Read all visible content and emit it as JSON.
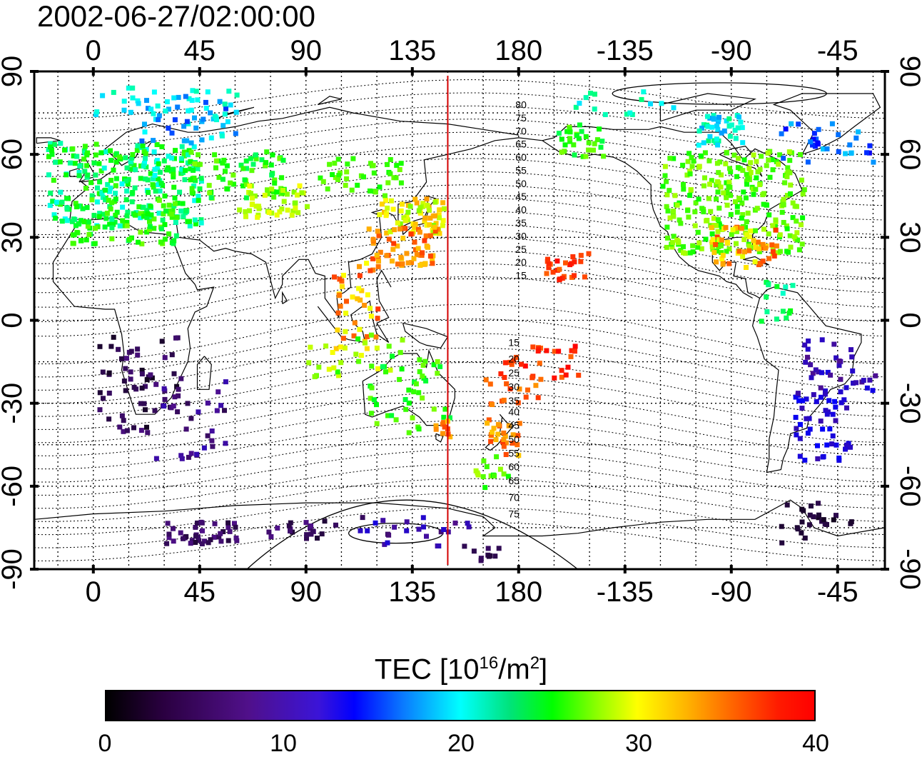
{
  "timestamp": "2002-06-27/02:00:00",
  "colorbar": {
    "title_main": "TEC  [10",
    "title_exp1": "16",
    "title_mid": "/m",
    "title_exp2": "2",
    "title_end": "]",
    "ticks": [
      "0",
      "10",
      "20",
      "30",
      "40"
    ],
    "range": [
      0,
      40
    ],
    "colormap": [
      "#000000",
      "#50108a",
      "#0000ff",
      "#00ffff",
      "#00ff00",
      "#ffff00",
      "#ff0000"
    ]
  },
  "map": {
    "x_ticks_top": [
      "0",
      "45",
      "90",
      "135",
      "180",
      "-135",
      "-90",
      "-45"
    ],
    "x_ticks_bottom": [
      "0",
      "45",
      "90",
      "135",
      "180",
      "-135",
      "-90",
      "-45"
    ],
    "y_ticks_left": [
      "90",
      "60",
      "30",
      "0",
      "-30",
      "-60",
      "-90"
    ],
    "y_ticks_right": [
      "90",
      "60",
      "30",
      "0",
      "-30",
      "-60",
      "-90"
    ],
    "longitude_range": [
      -25,
      335
    ],
    "latitude_range": [
      -90,
      90
    ],
    "meridian_line_lon": 150,
    "meridian_line_color": "#d40000",
    "contour_labels_north": [
      "80",
      "75",
      "70",
      "65",
      "60",
      "55",
      "50",
      "45",
      "40",
      "35",
      "30",
      "25",
      "20",
      "15"
    ],
    "contour_labels_south": [
      "15",
      "20",
      "25",
      "30",
      "35",
      "40",
      "45",
      "50",
      "55",
      "60",
      "65",
      "70",
      "75"
    ]
  }
}
